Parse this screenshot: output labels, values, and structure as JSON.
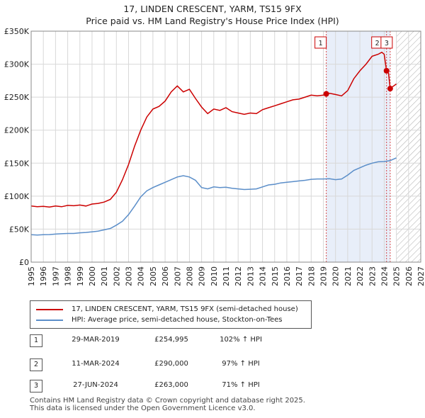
{
  "title_line1": "17, LINDEN CRESCENT, YARM, TS15 9FX",
  "title_line2": "Price paid vs. HM Land Registry's House Price Index (HPI)",
  "colors": {
    "property": "#cc0000",
    "hpi": "#5b8ec9",
    "shade": "#e8eef9",
    "grid": "#d8d8d8",
    "hatch": "#aaaaaa"
  },
  "legend": [
    {
      "label": "17, LINDEN CRESCENT, YARM, TS15 9FX (semi-detached house)",
      "color": "#cc0000"
    },
    {
      "label": "HPI: Average price, semi-detached house, Stockton-on-Tees",
      "color": "#5b8ec9"
    }
  ],
  "transactions": [
    {
      "num": "1",
      "date": "29-MAR-2019",
      "price": "£254,995",
      "diff": "102% ↑ HPI"
    },
    {
      "num": "2",
      "date": "11-MAR-2024",
      "price": "£290,000",
      "diff": "97% ↑ HPI"
    },
    {
      "num": "3",
      "date": "27-JUN-2024",
      "price": "£263,000",
      "diff": "71% ↑ HPI"
    }
  ],
  "footer": {
    "line1": "Contains HM Land Registry data © Crown copyright and database right 2025.",
    "line2": "This data is licensed under the Open Government Licence v3.0."
  },
  "chart_data": {
    "type": "line",
    "title": "17, LINDEN CRESCENT, YARM, TS15 9FX — Price paid vs. HM Land Registry's House Price Index (HPI)",
    "xlim": [
      1995,
      2027
    ],
    "ylim": [
      0,
      350000
    ],
    "xticks": [
      1995,
      1996,
      1997,
      1998,
      1999,
      2000,
      2001,
      2002,
      2003,
      2004,
      2005,
      2006,
      2007,
      2008,
      2009,
      2010,
      2011,
      2012,
      2013,
      2014,
      2015,
      2016,
      2017,
      2018,
      2019,
      2020,
      2021,
      2022,
      2023,
      2024,
      2025,
      2026,
      2027
    ],
    "yticks": [
      {
        "value": 0,
        "label": "£0"
      },
      {
        "value": 50000,
        "label": "£50K"
      },
      {
        "value": 100000,
        "label": "£100K"
      },
      {
        "value": 150000,
        "label": "£150K"
      },
      {
        "value": 200000,
        "label": "£200K"
      },
      {
        "value": 250000,
        "label": "£250K"
      },
      {
        "value": 300000,
        "label": "£300K"
      },
      {
        "value": 350000,
        "label": "£350K"
      }
    ],
    "grid": true,
    "shaded_region": [
      2019.24,
      2024.49
    ],
    "future_hatch_from": 2025.0,
    "sale_markers": [
      {
        "label": "1",
        "x": 2019.24,
        "y": 254995
      },
      {
        "label": "2",
        "x": 2024.19,
        "y": 290000
      },
      {
        "label": "3",
        "x": 2024.49,
        "y": 263000
      }
    ],
    "series": [
      {
        "name": "17, LINDEN CRESCENT, YARM, TS15 9FX (semi-detached house)",
        "color": "#cc0000",
        "points": [
          [
            1995.0,
            85000
          ],
          [
            1995.5,
            84000
          ],
          [
            1996.0,
            84500
          ],
          [
            1996.5,
            83500
          ],
          [
            1997.0,
            85000
          ],
          [
            1997.5,
            84000
          ],
          [
            1998.0,
            86000
          ],
          [
            1998.5,
            85500
          ],
          [
            1999.0,
            86500
          ],
          [
            1999.5,
            85000
          ],
          [
            2000.0,
            88000
          ],
          [
            2000.5,
            89000
          ],
          [
            2001.0,
            91000
          ],
          [
            2001.5,
            95000
          ],
          [
            2002.0,
            106000
          ],
          [
            2002.5,
            125000
          ],
          [
            2003.0,
            148000
          ],
          [
            2003.5,
            176000
          ],
          [
            2004.0,
            200000
          ],
          [
            2004.5,
            220000
          ],
          [
            2005.0,
            232000
          ],
          [
            2005.5,
            236000
          ],
          [
            2006.0,
            244000
          ],
          [
            2006.5,
            258000
          ],
          [
            2007.0,
            267000
          ],
          [
            2007.5,
            258000
          ],
          [
            2008.0,
            262000
          ],
          [
            2008.5,
            248000
          ],
          [
            2009.0,
            235000
          ],
          [
            2009.5,
            225000
          ],
          [
            2010.0,
            232000
          ],
          [
            2010.5,
            230000
          ],
          [
            2011.0,
            234000
          ],
          [
            2011.5,
            228000
          ],
          [
            2012.0,
            226000
          ],
          [
            2012.5,
            224000
          ],
          [
            2013.0,
            226000
          ],
          [
            2013.5,
            225000
          ],
          [
            2014.0,
            231000
          ],
          [
            2014.5,
            234000
          ],
          [
            2015.0,
            237000
          ],
          [
            2015.5,
            240000
          ],
          [
            2016.0,
            243000
          ],
          [
            2016.5,
            246000
          ],
          [
            2017.0,
            247000
          ],
          [
            2017.5,
            250000
          ],
          [
            2018.0,
            253000
          ],
          [
            2018.5,
            252000
          ],
          [
            2019.0,
            253000
          ],
          [
            2019.24,
            254995
          ],
          [
            2019.5,
            256000
          ],
          [
            2020.0,
            254000
          ],
          [
            2020.5,
            252000
          ],
          [
            2021.0,
            260000
          ],
          [
            2021.5,
            278000
          ],
          [
            2022.0,
            290000
          ],
          [
            2022.5,
            300000
          ],
          [
            2023.0,
            312000
          ],
          [
            2023.5,
            315000
          ],
          [
            2023.8,
            318000
          ],
          [
            2024.0,
            315000
          ],
          [
            2024.19,
            290000
          ],
          [
            2024.35,
            286000
          ],
          [
            2024.49,
            263000
          ],
          [
            2024.7,
            266000
          ],
          [
            2025.0,
            270000
          ]
        ]
      },
      {
        "name": "HPI: Average price, semi-detached house, Stockton-on-Tees",
        "color": "#5b8ec9",
        "points": [
          [
            1995.0,
            41500
          ],
          [
            1995.5,
            41000
          ],
          [
            1996.0,
            41500
          ],
          [
            1996.5,
            41800
          ],
          [
            1997.0,
            42500
          ],
          [
            1997.5,
            43000
          ],
          [
            1998.0,
            43500
          ],
          [
            1998.5,
            43500
          ],
          [
            1999.0,
            44500
          ],
          [
            1999.5,
            45000
          ],
          [
            2000.0,
            46000
          ],
          [
            2000.5,
            47000
          ],
          [
            2001.0,
            49000
          ],
          [
            2001.5,
            51000
          ],
          [
            2002.0,
            56000
          ],
          [
            2002.5,
            62000
          ],
          [
            2003.0,
            72000
          ],
          [
            2003.5,
            85000
          ],
          [
            2004.0,
            99000
          ],
          [
            2004.5,
            108000
          ],
          [
            2005.0,
            113000
          ],
          [
            2005.5,
            117000
          ],
          [
            2006.0,
            121000
          ],
          [
            2006.5,
            125000
          ],
          [
            2007.0,
            129000
          ],
          [
            2007.5,
            131000
          ],
          [
            2008.0,
            129000
          ],
          [
            2008.5,
            124000
          ],
          [
            2009.0,
            113000
          ],
          [
            2009.5,
            111000
          ],
          [
            2010.0,
            114000
          ],
          [
            2010.5,
            113000
          ],
          [
            2011.0,
            113500
          ],
          [
            2011.5,
            112000
          ],
          [
            2012.0,
            111000
          ],
          [
            2012.5,
            110000
          ],
          [
            2013.0,
            110500
          ],
          [
            2013.5,
            111000
          ],
          [
            2014.0,
            114000
          ],
          [
            2014.5,
            117000
          ],
          [
            2015.0,
            118000
          ],
          [
            2015.5,
            120000
          ],
          [
            2016.0,
            121000
          ],
          [
            2016.5,
            122000
          ],
          [
            2017.0,
            123000
          ],
          [
            2017.5,
            124000
          ],
          [
            2018.0,
            125500
          ],
          [
            2018.5,
            126000
          ],
          [
            2019.0,
            126000
          ],
          [
            2019.5,
            126500
          ],
          [
            2020.0,
            125000
          ],
          [
            2020.5,
            126000
          ],
          [
            2021.0,
            132000
          ],
          [
            2021.5,
            139000
          ],
          [
            2022.0,
            143000
          ],
          [
            2022.5,
            147000
          ],
          [
            2023.0,
            150000
          ],
          [
            2023.5,
            152000
          ],
          [
            2024.0,
            152500
          ],
          [
            2024.5,
            154000
          ],
          [
            2025.0,
            158000
          ]
        ]
      }
    ]
  }
}
